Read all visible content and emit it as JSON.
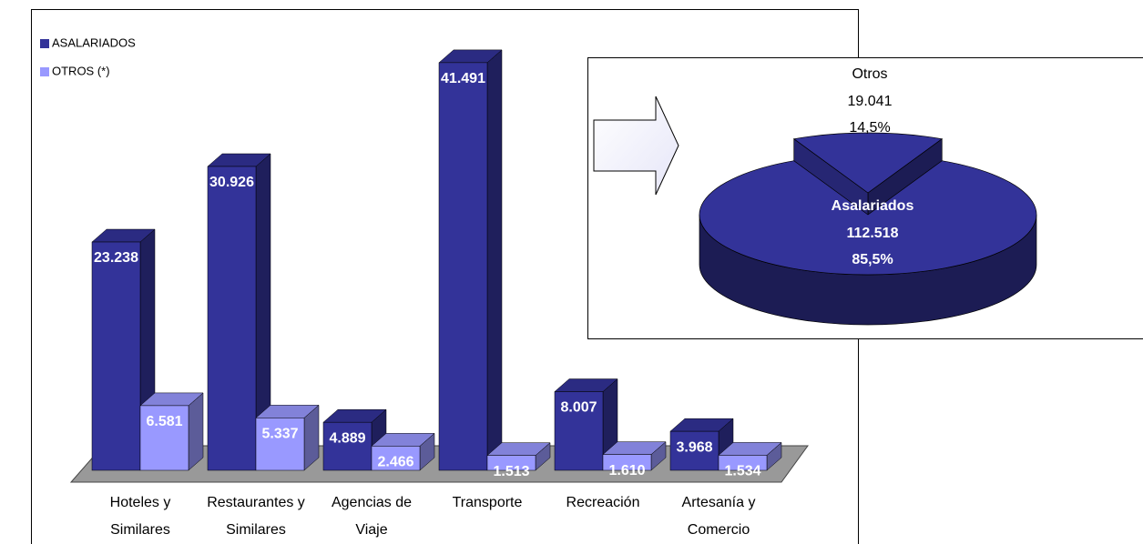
{
  "chart_data": [
    {
      "type": "bar3d",
      "categories": [
        "Hoteles y Similares",
        "Restaurantes y Similares",
        "Agencias de Viaje",
        "Transporte",
        "Recreación",
        "Artesanía y Comercio"
      ],
      "series": [
        {
          "name": "ASALARIADOS",
          "color": "#333399",
          "values": [
            23238,
            30926,
            4889,
            41491,
            8007,
            3968
          ],
          "value_labels": [
            "23.238",
            "30.926",
            "4.889",
            "41.491",
            "8.007",
            "3.968"
          ]
        },
        {
          "name": "OTROS (*)",
          "color": "#9999ff",
          "values": [
            6581,
            5337,
            2466,
            1513,
            1610,
            1534
          ],
          "value_labels": [
            "6.581",
            "5.337",
            "2.466",
            "1.513",
            "1.610",
            "1.534"
          ]
        }
      ]
    },
    {
      "type": "pie3d",
      "categories": [
        "Otros",
        "Asalariados"
      ],
      "values": [
        19041,
        112518
      ],
      "value_labels": [
        "19.041",
        "112.518"
      ],
      "percentages": [
        14.5,
        85.5
      ],
      "percentage_labels": [
        "14,5%",
        "85,5%"
      ],
      "color": "#333399"
    }
  ]
}
